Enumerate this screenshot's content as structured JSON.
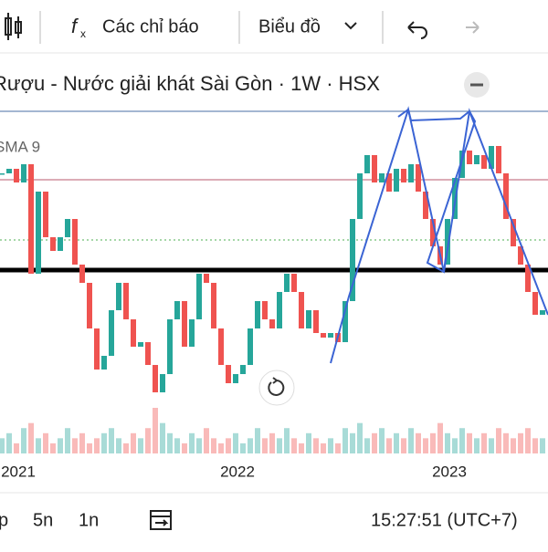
{
  "toolbar": {
    "indicators": "Các chỉ báo",
    "chart_type": "Biểu đồ"
  },
  "chart": {
    "title": "Rượu - Nước giải khát Sài Gòn · 1W · HSX",
    "indicator": "SMA 9",
    "ylim": [
      10,
      50
    ],
    "closes": [
      41,
      41.5,
      40,
      42,
      30,
      39,
      34,
      32.5,
      34,
      36,
      31,
      29,
      24,
      19.5,
      21,
      26,
      29,
      25,
      22,
      22.5,
      20,
      17,
      19,
      25,
      27,
      22,
      25,
      30,
      29,
      24,
      20,
      18,
      19,
      20,
      24,
      27,
      25,
      24,
      28,
      30,
      28,
      24,
      26,
      23.5,
      23,
      23.5,
      22.5,
      27,
      36,
      41,
      43,
      40,
      41,
      39,
      41.5,
      40,
      42,
      39,
      36,
      33,
      31,
      36,
      40.5,
      43.5,
      42,
      43,
      41.5,
      44,
      41,
      36,
      33,
      31,
      28,
      25.5,
      26
    ],
    "volumes": [
      3,
      4,
      2,
      5,
      6,
      3,
      4,
      2,
      3,
      5,
      3,
      4,
      2,
      3,
      4,
      5,
      3,
      2,
      4,
      3,
      5,
      9,
      6,
      4,
      3,
      2,
      4,
      3,
      5,
      3,
      2,
      3,
      4,
      2,
      3,
      5,
      3,
      4,
      3,
      5,
      3,
      2,
      4,
      3,
      2,
      3,
      2,
      5,
      4,
      6,
      3,
      4,
      5,
      3,
      4,
      3,
      5,
      4,
      3,
      4,
      6,
      4,
      3,
      5,
      4,
      3,
      4,
      3,
      5,
      4,
      3,
      4,
      5,
      3,
      3
    ],
    "up_color": "#26a69a",
    "down_color": "#ef5350",
    "levels": [
      {
        "value": 47.8,
        "color": "#4a6fa5"
      },
      {
        "value": 40.3,
        "color": "#b85a6e"
      },
      {
        "value": 33.7,
        "color": "#4caf50"
      },
      {
        "value": 30.4,
        "color": "#000000"
      }
    ],
    "x_labels": [
      "2021",
      "2022",
      "2023"
    ]
  },
  "bottom_bar": {
    "ranges": [
      "p",
      "5n",
      "1n"
    ],
    "clock": "15:27:51 (UTC+7)"
  }
}
